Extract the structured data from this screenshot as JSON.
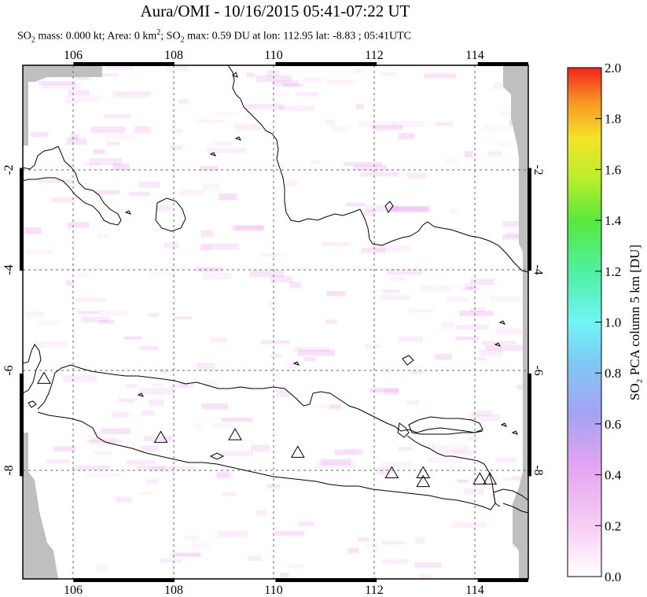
{
  "title": "Aura/OMI - 10/16/2015 05:41-07:22 UT",
  "subtitle": {
    "mass_label": "SO",
    "mass_sub": "2",
    "mass_text": " mass: 0.000 kt; Area: 0 km",
    "area_sup": "2",
    "max_label": "; SO",
    "max_sub": "2",
    "max_text": " max: 0.59 DU at lon: 112.95 lat: -8.83 ; 05:41UTC"
  },
  "colors": {
    "land_outline": "#000000",
    "no_data": "#bfbfbf",
    "grid": "#666666"
  },
  "chart_data": {
    "type": "heatmap",
    "x_ticks": [
      "106",
      "108",
      "110",
      "112",
      "114"
    ],
    "y_ticks_left": [
      "-2",
      "-4",
      "-6",
      "-8"
    ],
    "y_ticks_right": [
      "-2",
      "-4",
      "-6",
      "-8"
    ],
    "xlim": [
      105.0,
      115.0
    ],
    "ylim": [
      -10.0,
      0.0
    ],
    "grid": true,
    "colorbar": {
      "label": "SO₂ PCA column 5 km [DU]",
      "ticks": [
        "0.0",
        "0.2",
        "0.4",
        "0.6",
        "0.8",
        "1.0",
        "1.2",
        "1.4",
        "1.6",
        "1.8",
        "2.0"
      ],
      "range": [
        0.0,
        2.0
      ]
    },
    "volcanoes": [
      {
        "lon": 105.42,
        "lat": -6.1
      },
      {
        "lon": 107.73,
        "lat": -7.25
      },
      {
        "lon": 109.2,
        "lat": -7.2
      },
      {
        "lon": 110.44,
        "lat": -7.54
      },
      {
        "lon": 112.3,
        "lat": -7.94
      },
      {
        "lon": 112.92,
        "lat": -7.94
      },
      {
        "lon": 112.92,
        "lat": -8.11
      },
      {
        "lon": 114.04,
        "lat": -8.06
      },
      {
        "lon": 114.24,
        "lat": -8.06
      }
    ]
  }
}
